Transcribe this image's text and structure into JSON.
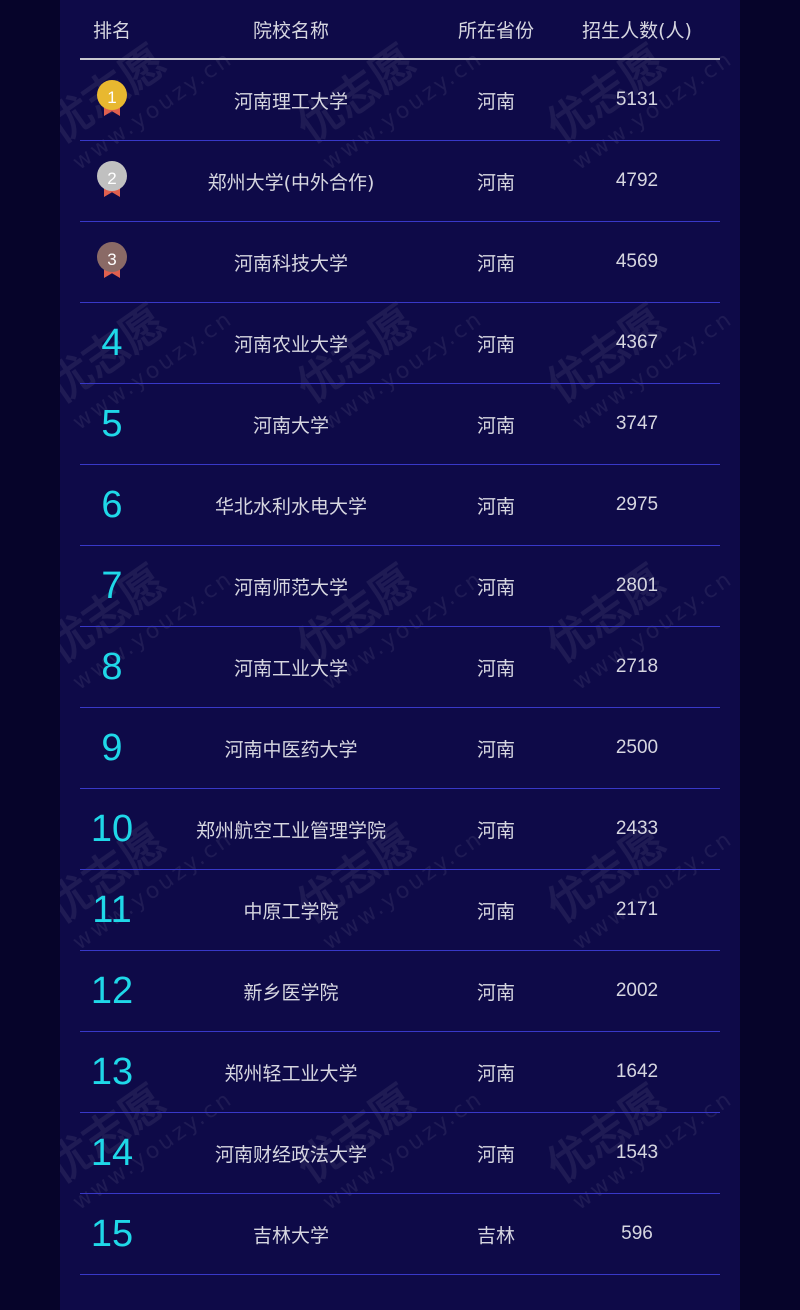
{
  "watermark": {
    "brand": "优志愿",
    "url": "www.youzy.cn"
  },
  "table": {
    "headers": [
      "排名",
      "院校名称",
      "所在省份",
      "招生人数(人)"
    ],
    "medal_colors": {
      "1": "#e8b830",
      "2": "#c0c0c0",
      "3": "#8a6a66"
    },
    "rank_color": "#1fd8e8",
    "rows": [
      {
        "rank": "1",
        "name": "河南理工大学",
        "province": "河南",
        "count": "5131"
      },
      {
        "rank": "2",
        "name": "郑州大学(中外合作)",
        "province": "河南",
        "count": "4792"
      },
      {
        "rank": "3",
        "name": "河南科技大学",
        "province": "河南",
        "count": "4569"
      },
      {
        "rank": "4",
        "name": "河南农业大学",
        "province": "河南",
        "count": "4367"
      },
      {
        "rank": "5",
        "name": "河南大学",
        "province": "河南",
        "count": "3747"
      },
      {
        "rank": "6",
        "name": "华北水利水电大学",
        "province": "河南",
        "count": "2975"
      },
      {
        "rank": "7",
        "name": "河南师范大学",
        "province": "河南",
        "count": "2801"
      },
      {
        "rank": "8",
        "name": "河南工业大学",
        "province": "河南",
        "count": "2718"
      },
      {
        "rank": "9",
        "name": "河南中医药大学",
        "province": "河南",
        "count": "2500"
      },
      {
        "rank": "10",
        "name": "郑州航空工业管理学院",
        "province": "河南",
        "count": "2433"
      },
      {
        "rank": "11",
        "name": "中原工学院",
        "province": "河南",
        "count": "2171"
      },
      {
        "rank": "12",
        "name": "新乡医学院",
        "province": "河南",
        "count": "2002"
      },
      {
        "rank": "13",
        "name": "郑州轻工业大学",
        "province": "河南",
        "count": "1642"
      },
      {
        "rank": "14",
        "name": "河南财经政法大学",
        "province": "河南",
        "count": "1543"
      },
      {
        "rank": "15",
        "name": "吉林大学",
        "province": "吉林",
        "count": "596"
      }
    ]
  }
}
